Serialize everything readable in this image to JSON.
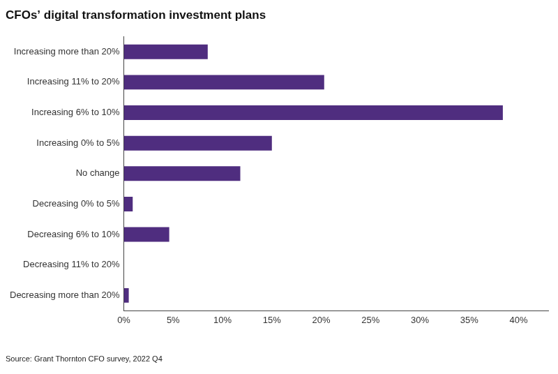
{
  "chart_data": {
    "type": "bar",
    "title": "CFOs’ digital transformation investment plans",
    "source": "Source: Grant Thornton CFO survey, 2022 Q4",
    "orientation": "horizontal",
    "categories": [
      "Increasing more than 20%",
      "Increasing 11% to 20%",
      "Increasing 6% to 10%",
      "Increasing 0% to 5%",
      "No change",
      "Decreasing 0% to 5%",
      "Decreasing 6% to 10%",
      "Decreasing 11% to 20%",
      "Decreasing more than 20%"
    ],
    "values": [
      8.5,
      20.3,
      38.4,
      15.0,
      11.8,
      0.9,
      4.6,
      0,
      0.5
    ],
    "color": "#4f2d7f",
    "xlim": [
      0,
      43
    ],
    "xticks": [
      {
        "value": 0,
        "label": "0%"
      },
      {
        "value": 5,
        "label": "5%"
      },
      {
        "value": 10,
        "label": "10%"
      },
      {
        "value": 15,
        "label": "15%"
      },
      {
        "value": 20,
        "label": "20%"
      },
      {
        "value": 25,
        "label": "25%"
      },
      {
        "value": 30,
        "label": "30%"
      },
      {
        "value": 35,
        "label": "35%"
      },
      {
        "value": 40,
        "label": "40%"
      }
    ],
    "grid": false
  }
}
